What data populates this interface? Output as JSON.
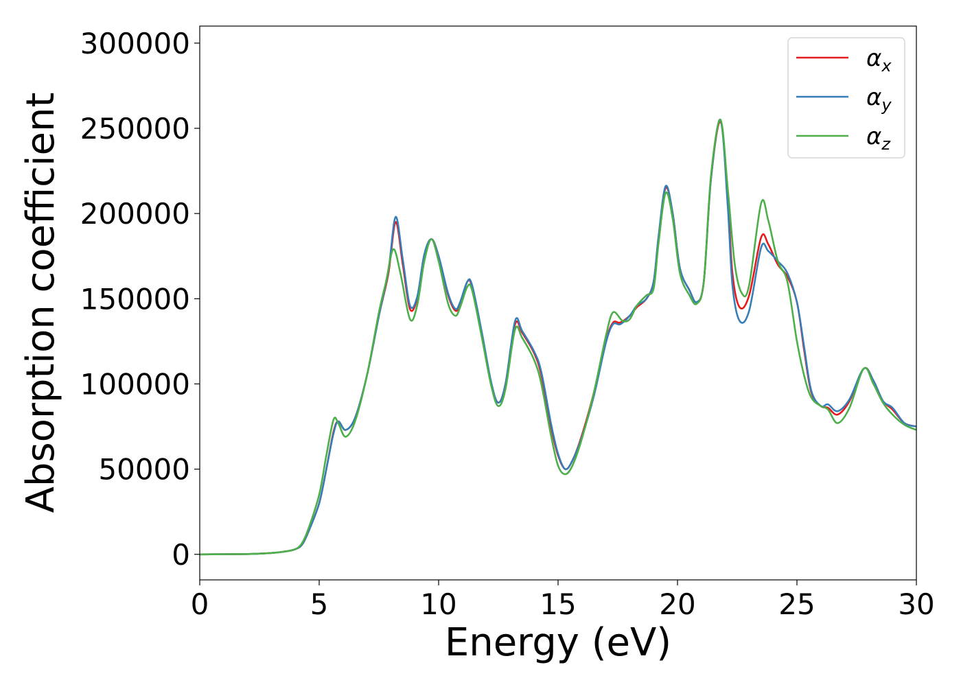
{
  "chart_data": {
    "type": "line",
    "title": "",
    "xlabel": "Energy (eV)",
    "ylabel": "Absorption coefficient",
    "xlim": [
      0,
      30
    ],
    "ylim": [
      -15000,
      310000
    ],
    "xticks": [
      0,
      5,
      10,
      15,
      20,
      25,
      30
    ],
    "yticks": [
      0,
      50000,
      100000,
      150000,
      200000,
      250000,
      300000
    ],
    "grid": false,
    "legend_position": "top-right",
    "series": [
      {
        "name": "αx",
        "legend_base": "α",
        "legend_sub": "x",
        "color": "#e41a1c",
        "points": [
          [
            0,
            0
          ],
          [
            2,
            200
          ],
          [
            3,
            800
          ],
          [
            3.5,
            1500
          ],
          [
            4,
            3000
          ],
          [
            4.3,
            6000
          ],
          [
            4.6,
            15000
          ],
          [
            5,
            30000
          ],
          [
            5.3,
            50000
          ],
          [
            5.6,
            72000
          ],
          [
            5.8,
            78000
          ],
          [
            6.1,
            73000
          ],
          [
            6.5,
            80000
          ],
          [
            7,
            105000
          ],
          [
            7.5,
            140000
          ],
          [
            7.9,
            165000
          ],
          [
            8.2,
            195000
          ],
          [
            8.5,
            170000
          ],
          [
            8.8,
            144000
          ],
          [
            9.1,
            150000
          ],
          [
            9.4,
            175000
          ],
          [
            9.7,
            185000
          ],
          [
            10,
            175000
          ],
          [
            10.4,
            152000
          ],
          [
            10.7,
            143000
          ],
          [
            10.9,
            147000
          ],
          [
            11.2,
            160000
          ],
          [
            11.4,
            157000
          ],
          [
            11.8,
            130000
          ],
          [
            12.2,
            100000
          ],
          [
            12.5,
            89000
          ],
          [
            12.8,
            100000
          ],
          [
            13.2,
            135000
          ],
          [
            13.5,
            130000
          ],
          [
            14,
            118000
          ],
          [
            14.3,
            105000
          ],
          [
            14.7,
            75000
          ],
          [
            15,
            58000
          ],
          [
            15.3,
            50000
          ],
          [
            15.6,
            55000
          ],
          [
            16,
            70000
          ],
          [
            16.5,
            95000
          ],
          [
            17,
            125000
          ],
          [
            17.3,
            136000
          ],
          [
            17.6,
            136000
          ],
          [
            18,
            140000
          ],
          [
            18.3,
            145000
          ],
          [
            18.7,
            150000
          ],
          [
            19,
            160000
          ],
          [
            19.2,
            185000
          ],
          [
            19.5,
            215000
          ],
          [
            19.8,
            200000
          ],
          [
            20.1,
            168000
          ],
          [
            20.5,
            155000
          ],
          [
            20.8,
            148000
          ],
          [
            21.1,
            160000
          ],
          [
            21.4,
            220000
          ],
          [
            21.8,
            254000
          ],
          [
            22.1,
            210000
          ],
          [
            22.3,
            165000
          ],
          [
            22.6,
            145000
          ],
          [
            23,
            152000
          ],
          [
            23.5,
            186000
          ],
          [
            23.8,
            182000
          ],
          [
            24.2,
            170000
          ],
          [
            24.6,
            163000
          ],
          [
            25,
            148000
          ],
          [
            25.3,
            120000
          ],
          [
            25.6,
            95000
          ],
          [
            26,
            87000
          ],
          [
            26.3,
            86000
          ],
          [
            26.7,
            82000
          ],
          [
            27.2,
            90000
          ],
          [
            27.8,
            109000
          ],
          [
            28.2,
            102000
          ],
          [
            28.6,
            90000
          ],
          [
            29,
            85000
          ],
          [
            29.5,
            77000
          ],
          [
            30,
            75000
          ]
        ]
      },
      {
        "name": "αy",
        "legend_base": "α",
        "legend_sub": "y",
        "color": "#377eb8",
        "points": [
          [
            0,
            0
          ],
          [
            2,
            200
          ],
          [
            3,
            800
          ],
          [
            3.5,
            1500
          ],
          [
            4,
            3000
          ],
          [
            4.3,
            6000
          ],
          [
            4.6,
            15000
          ],
          [
            5,
            30000
          ],
          [
            5.3,
            50000
          ],
          [
            5.6,
            71000
          ],
          [
            5.8,
            78000
          ],
          [
            6.1,
            73000
          ],
          [
            6.5,
            80000
          ],
          [
            7,
            105000
          ],
          [
            7.5,
            140000
          ],
          [
            7.9,
            167000
          ],
          [
            8.2,
            198000
          ],
          [
            8.5,
            173000
          ],
          [
            8.8,
            146000
          ],
          [
            9.1,
            151000
          ],
          [
            9.4,
            176000
          ],
          [
            9.7,
            185000
          ],
          [
            10,
            175000
          ],
          [
            10.4,
            153000
          ],
          [
            10.7,
            144000
          ],
          [
            10.9,
            148000
          ],
          [
            11.2,
            160000
          ],
          [
            11.4,
            158000
          ],
          [
            11.8,
            131000
          ],
          [
            12.2,
            101000
          ],
          [
            12.5,
            89000
          ],
          [
            12.8,
            100000
          ],
          [
            13.2,
            137000
          ],
          [
            13.5,
            131000
          ],
          [
            14,
            119000
          ],
          [
            14.3,
            107000
          ],
          [
            14.7,
            77000
          ],
          [
            15,
            59000
          ],
          [
            15.3,
            50000
          ],
          [
            15.6,
            55000
          ],
          [
            16,
            69000
          ],
          [
            16.5,
            93000
          ],
          [
            17,
            124000
          ],
          [
            17.3,
            135000
          ],
          [
            17.6,
            135000
          ],
          [
            18,
            140000
          ],
          [
            18.3,
            146000
          ],
          [
            18.7,
            150000
          ],
          [
            19,
            160000
          ],
          [
            19.2,
            186000
          ],
          [
            19.5,
            216000
          ],
          [
            19.8,
            200000
          ],
          [
            20.1,
            168000
          ],
          [
            20.5,
            155000
          ],
          [
            20.8,
            148000
          ],
          [
            21.1,
            160000
          ],
          [
            21.4,
            220000
          ],
          [
            21.8,
            255000
          ],
          [
            22.1,
            205000
          ],
          [
            22.3,
            158000
          ],
          [
            22.6,
            137000
          ],
          [
            23,
            143000
          ],
          [
            23.5,
            180000
          ],
          [
            23.8,
            178000
          ],
          [
            24.2,
            172000
          ],
          [
            24.6,
            165000
          ],
          [
            25,
            148000
          ],
          [
            25.3,
            122000
          ],
          [
            25.6,
            96000
          ],
          [
            26,
            87000
          ],
          [
            26.3,
            88000
          ],
          [
            26.7,
            84000
          ],
          [
            27.2,
            91000
          ],
          [
            27.8,
            109000
          ],
          [
            28.2,
            102000
          ],
          [
            28.6,
            90000
          ],
          [
            29,
            86000
          ],
          [
            29.5,
            77000
          ],
          [
            30,
            75000
          ]
        ]
      },
      {
        "name": "αz",
        "legend_base": "α",
        "legend_sub": "z",
        "color": "#4daf4a",
        "points": [
          [
            0,
            0
          ],
          [
            2,
            200
          ],
          [
            3,
            800
          ],
          [
            3.5,
            1500
          ],
          [
            4,
            3000
          ],
          [
            4.3,
            7000
          ],
          [
            4.6,
            17000
          ],
          [
            5,
            35000
          ],
          [
            5.3,
            58000
          ],
          [
            5.6,
            79000
          ],
          [
            5.8,
            77000
          ],
          [
            6.1,
            69000
          ],
          [
            6.5,
            78000
          ],
          [
            7,
            105000
          ],
          [
            7.5,
            142000
          ],
          [
            7.8,
            160000
          ],
          [
            8.1,
            179000
          ],
          [
            8.4,
            165000
          ],
          [
            8.8,
            138000
          ],
          [
            9.1,
            146000
          ],
          [
            9.4,
            172000
          ],
          [
            9.7,
            185000
          ],
          [
            10,
            172000
          ],
          [
            10.4,
            147000
          ],
          [
            10.7,
            140000
          ],
          [
            10.9,
            145000
          ],
          [
            11.2,
            157000
          ],
          [
            11.4,
            155000
          ],
          [
            11.8,
            128000
          ],
          [
            12.2,
            99000
          ],
          [
            12.5,
            87000
          ],
          [
            12.8,
            97000
          ],
          [
            13.2,
            132000
          ],
          [
            13.5,
            127000
          ],
          [
            14,
            114000
          ],
          [
            14.3,
            100000
          ],
          [
            14.7,
            70000
          ],
          [
            15,
            52000
          ],
          [
            15.3,
            47000
          ],
          [
            15.6,
            52000
          ],
          [
            16,
            68000
          ],
          [
            16.5,
            95000
          ],
          [
            17,
            128000
          ],
          [
            17.3,
            142000
          ],
          [
            17.7,
            137000
          ],
          [
            18,
            138000
          ],
          [
            18.3,
            146000
          ],
          [
            18.7,
            152000
          ],
          [
            19,
            156000
          ],
          [
            19.2,
            182000
          ],
          [
            19.5,
            212000
          ],
          [
            19.8,
            197000
          ],
          [
            20.1,
            165000
          ],
          [
            20.5,
            152000
          ],
          [
            20.8,
            147000
          ],
          [
            21.1,
            160000
          ],
          [
            21.4,
            222000
          ],
          [
            21.8,
            255000
          ],
          [
            22.1,
            215000
          ],
          [
            22.4,
            170000
          ],
          [
            22.7,
            153000
          ],
          [
            23,
            158000
          ],
          [
            23.5,
            206000
          ],
          [
            23.8,
            196000
          ],
          [
            24.2,
            172000
          ],
          [
            24.6,
            160000
          ],
          [
            25,
            125000
          ],
          [
            25.3,
            105000
          ],
          [
            25.6,
            92000
          ],
          [
            26,
            87000
          ],
          [
            26.3,
            85000
          ],
          [
            26.7,
            77000
          ],
          [
            27.2,
            86000
          ],
          [
            27.8,
            109000
          ],
          [
            28.2,
            100000
          ],
          [
            28.6,
            89000
          ],
          [
            29,
            82000
          ],
          [
            29.5,
            76000
          ],
          [
            30,
            73000
          ]
        ]
      }
    ]
  }
}
